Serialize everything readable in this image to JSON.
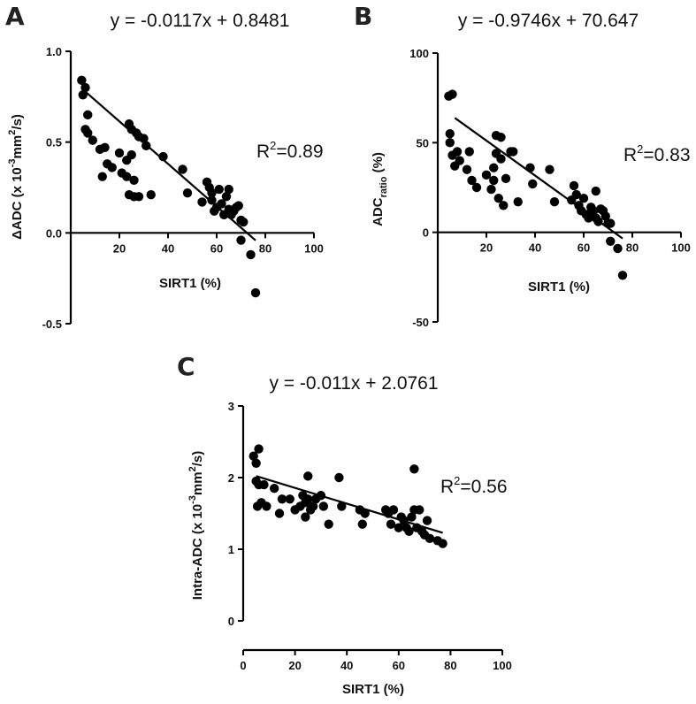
{
  "chart_data": [
    {
      "panel": "A",
      "type": "scatter",
      "equation": "y = -0.0117x + 0.8481",
      "r2_label": "R",
      "r2_sup": "2",
      "r2_value": "=0.89",
      "xlabel": "SIRT1 (%)",
      "ylabel": "ΔADC (x 10",
      "ylabel_sup": "-3",
      "ylabel_mid": "mm",
      "ylabel_sup2": "2",
      "ylabel_end": "/s)",
      "xlim": [
        0,
        100
      ],
      "ylim": [
        -0.5,
        1.0
      ],
      "xticks": [
        20,
        40,
        60,
        80,
        100
      ],
      "yticks": [
        -0.5,
        0.0,
        0.5,
        1.0
      ],
      "ytick_labels": [
        "-0.5",
        "0.0",
        "0.5",
        "1.0"
      ],
      "fit": {
        "slope": -0.0117,
        "intercept": 0.8481,
        "x_range": [
          5,
          76
        ]
      },
      "points": [
        [
          4.5,
          0.84
        ],
        [
          5,
          0.76
        ],
        [
          6,
          0.8
        ],
        [
          6,
          0.57
        ],
        [
          7,
          0.65
        ],
        [
          7,
          0.55
        ],
        [
          9,
          0.51
        ],
        [
          12,
          0.46
        ],
        [
          13,
          0.31
        ],
        [
          14,
          0.47
        ],
        [
          15,
          0.38
        ],
        [
          17,
          0.36
        ],
        [
          20,
          0.44
        ],
        [
          21,
          0.33
        ],
        [
          23,
          0.4
        ],
        [
          23,
          0.31
        ],
        [
          24,
          0.6
        ],
        [
          24,
          0.21
        ],
        [
          25,
          0.57
        ],
        [
          25,
          0.43
        ],
        [
          26,
          0.29
        ],
        [
          26,
          0.2
        ],
        [
          27,
          0.55
        ],
        [
          28,
          0.53
        ],
        [
          28,
          0.2
        ],
        [
          30,
          0.52
        ],
        [
          31,
          0.48
        ],
        [
          33,
          0.21
        ],
        [
          38,
          0.42
        ],
        [
          46,
          0.35
        ],
        [
          48,
          0.22
        ],
        [
          54,
          0.17
        ],
        [
          56,
          0.28
        ],
        [
          57,
          0.25
        ],
        [
          58,
          0.22
        ],
        [
          58,
          0.18
        ],
        [
          59,
          0.12
        ],
        [
          60,
          0.14
        ],
        [
          61,
          0.24
        ],
        [
          62,
          0.16
        ],
        [
          63,
          0.1
        ],
        [
          64,
          0.2
        ],
        [
          65,
          0.13
        ],
        [
          65,
          0.24
        ],
        [
          66,
          0.1
        ],
        [
          67,
          0.12
        ],
        [
          68,
          0.14
        ],
        [
          69,
          0.15
        ],
        [
          70,
          0.07
        ],
        [
          70,
          -0.04
        ],
        [
          71,
          0.06
        ],
        [
          74,
          -0.12
        ],
        [
          76,
          -0.33
        ]
      ]
    },
    {
      "panel": "B",
      "type": "scatter",
      "equation": "y = -0.9746x + 70.647",
      "r2_label": "R",
      "r2_sup": "2",
      "r2_value": "=0.83",
      "xlabel": "SIRT1 (%)",
      "ylabel": "ADC",
      "ylabel_sub": "ratio",
      "ylabel_end": " (%)",
      "xlim": [
        0,
        100
      ],
      "ylim": [
        -50,
        100
      ],
      "xticks": [
        20,
        40,
        60,
        80,
        100
      ],
      "yticks": [
        -50,
        0,
        50,
        100
      ],
      "ytick_labels": [
        "-50",
        "0",
        "50",
        "100"
      ],
      "fit": {
        "slope": -0.9746,
        "intercept": 70.647,
        "x_range": [
          7,
          76
        ]
      },
      "points": [
        [
          4.5,
          76
        ],
        [
          5,
          50
        ],
        [
          5,
          55
        ],
        [
          6,
          77
        ],
        [
          6,
          43
        ],
        [
          7,
          37
        ],
        [
          8,
          45
        ],
        [
          9,
          40
        ],
        [
          12,
          35
        ],
        [
          13,
          45
        ],
        [
          14,
          29
        ],
        [
          16,
          25
        ],
        [
          20,
          32
        ],
        [
          22,
          24
        ],
        [
          23,
          36
        ],
        [
          23,
          29
        ],
        [
          24,
          54
        ],
        [
          24,
          44
        ],
        [
          25,
          19
        ],
        [
          26,
          53
        ],
        [
          26,
          41
        ],
        [
          27,
          15
        ],
        [
          28,
          30
        ],
        [
          30,
          45
        ],
        [
          31,
          45
        ],
        [
          33,
          17
        ],
        [
          38,
          36
        ],
        [
          39,
          27
        ],
        [
          46,
          35
        ],
        [
          48,
          17
        ],
        [
          55,
          18
        ],
        [
          56,
          26
        ],
        [
          57,
          21
        ],
        [
          58,
          15
        ],
        [
          59,
          12
        ],
        [
          60,
          19
        ],
        [
          61,
          10
        ],
        [
          62,
          8
        ],
        [
          63,
          14
        ],
        [
          64,
          12
        ],
        [
          65,
          23
        ],
        [
          65,
          8
        ],
        [
          66,
          6
        ],
        [
          67,
          13
        ],
        [
          68,
          12
        ],
        [
          69,
          9
        ],
        [
          70,
          5
        ],
        [
          71,
          5
        ],
        [
          71,
          -5
        ],
        [
          74,
          -9
        ],
        [
          76,
          -24
        ]
      ]
    },
    {
      "panel": "C",
      "type": "scatter",
      "equation": "y = -0.011x + 2.0761",
      "r2_label": "R",
      "r2_sup": "2",
      "r2_value": "=0.56",
      "xlabel": "SIRT1 (%)",
      "ylabel": "Intra-ADC (x 10",
      "ylabel_sup": "-3",
      "ylabel_mid": "mm",
      "ylabel_sup2": "2",
      "ylabel_end": "/s)",
      "xlim": [
        0,
        100
      ],
      "ylim": [
        0,
        3
      ],
      "xticks": [
        0,
        20,
        40,
        60,
        80,
        100
      ],
      "yticks": [
        0,
        1,
        2,
        3
      ],
      "ytick_labels": [
        "0",
        "1",
        "2",
        "3"
      ],
      "fit": {
        "slope": -0.011,
        "intercept": 2.0761,
        "x_range": [
          5,
          77
        ]
      },
      "points": [
        [
          4,
          2.3
        ],
        [
          5,
          2.2
        ],
        [
          5,
          1.95
        ],
        [
          5.5,
          1.6
        ],
        [
          6,
          2.4
        ],
        [
          6,
          1.9
        ],
        [
          7,
          1.65
        ],
        [
          8,
          1.9
        ],
        [
          9,
          1.6
        ],
        [
          12,
          1.85
        ],
        [
          14,
          1.5
        ],
        [
          15,
          1.7
        ],
        [
          18,
          1.7
        ],
        [
          20,
          1.55
        ],
        [
          22,
          1.6
        ],
        [
          23,
          1.75
        ],
        [
          24,
          1.65
        ],
        [
          24,
          1.45
        ],
        [
          25,
          2.02
        ],
        [
          25,
          1.7
        ],
        [
          26,
          1.55
        ],
        [
          27,
          1.6
        ],
        [
          28,
          1.7
        ],
        [
          30,
          1.75
        ],
        [
          31,
          1.6
        ],
        [
          33,
          1.35
        ],
        [
          37,
          2.0
        ],
        [
          38,
          1.6
        ],
        [
          45,
          1.55
        ],
        [
          46,
          1.35
        ],
        [
          47,
          1.5
        ],
        [
          55,
          1.55
        ],
        [
          56,
          1.5
        ],
        [
          57,
          1.35
        ],
        [
          58,
          1.55
        ],
        [
          60,
          1.3
        ],
        [
          61,
          1.45
        ],
        [
          62,
          1.4
        ],
        [
          63,
          1.3
        ],
        [
          64,
          1.25
        ],
        [
          65,
          1.45
        ],
        [
          66,
          2.12
        ],
        [
          66,
          1.55
        ],
        [
          67,
          1.3
        ],
        [
          68,
          1.55
        ],
        [
          69,
          1.25
        ],
        [
          70,
          1.2
        ],
        [
          71,
          1.4
        ],
        [
          72,
          1.15
        ],
        [
          75,
          1.12
        ],
        [
          77,
          1.08
        ]
      ]
    }
  ]
}
